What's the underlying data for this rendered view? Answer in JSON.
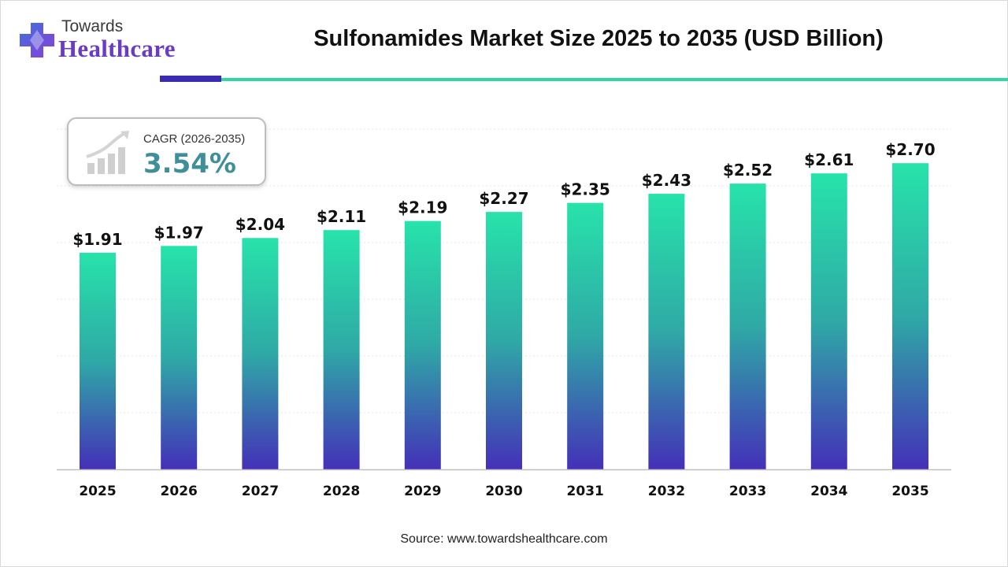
{
  "header": {
    "logo_top": "Towards",
    "logo_bottom": "Healthcare",
    "title": "Sulfonamides Market Size 2025 to 2035 (USD Billion)"
  },
  "cagr": {
    "label": "CAGR (2026-2035)",
    "value": "3.54%"
  },
  "footer": {
    "source": "Source: www.towardshealthcare.com"
  },
  "colors": {
    "bar_top": "#27e3aa",
    "bar_bottom": "#4430b8",
    "accent_dark": "#3b2bb0",
    "accent_teal": "#2fd7a6",
    "brand_purple": "#6a3cc4",
    "cagr_value": "#3f8f9a"
  },
  "chart_data": {
    "type": "bar",
    "categories": [
      "2025",
      "2026",
      "2027",
      "2028",
      "2029",
      "2030",
      "2031",
      "2032",
      "2033",
      "2034",
      "2035"
    ],
    "values": [
      1.91,
      1.97,
      2.04,
      2.11,
      2.19,
      2.27,
      2.35,
      2.43,
      2.52,
      2.61,
      2.7
    ],
    "data_labels": [
      "$1.91",
      "$1.97",
      "$2.04",
      "$2.11",
      "$2.19",
      "$2.27",
      "$2.35",
      "$2.43",
      "$2.52",
      "$2.61",
      "$2.70"
    ],
    "ylim": [
      0,
      3.0
    ],
    "grid": true
  }
}
